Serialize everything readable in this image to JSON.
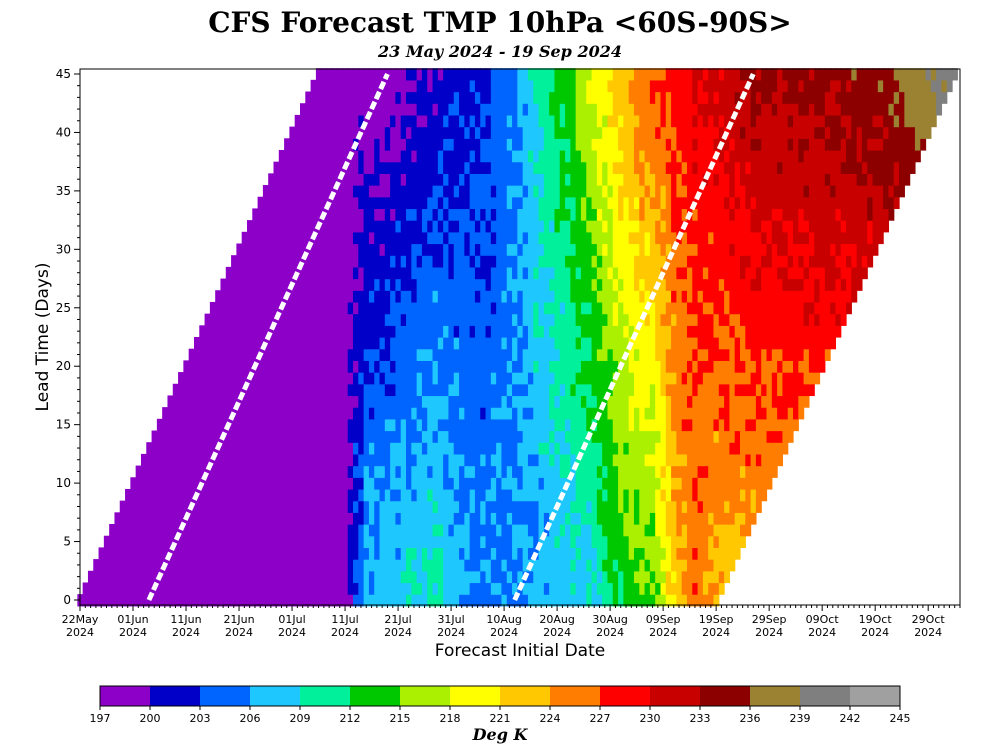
{
  "chart_data": {
    "type": "heatmap",
    "title": "CFS Forecast TMP 10hPa <60S-90S>",
    "subtitle": "23 May 2024 - 19 Sep 2024",
    "xlabel": "Forecast Initial Date",
    "ylabel": "Lead Time (Days)",
    "colorbar_label": "Deg K",
    "x_range": [
      "2024-05-22",
      "2024-11-04"
    ],
    "y_range": [
      0,
      45
    ],
    "x_ticks": [
      {
        "date": "2024-05-22",
        "line1": "22May",
        "line2": "2024"
      },
      {
        "date": "2024-06-01",
        "line1": "01Jun",
        "line2": "2024"
      },
      {
        "date": "2024-06-11",
        "line1": "11Jun",
        "line2": "2024"
      },
      {
        "date": "2024-06-21",
        "line1": "21Jun",
        "line2": "2024"
      },
      {
        "date": "2024-07-01",
        "line1": "01Jul",
        "line2": "2024"
      },
      {
        "date": "2024-07-11",
        "line1": "11Jul",
        "line2": "2024"
      },
      {
        "date": "2024-07-21",
        "line1": "21Jul",
        "line2": "2024"
      },
      {
        "date": "2024-07-31",
        "line1": "31Jul",
        "line2": "2024"
      },
      {
        "date": "2024-08-10",
        "line1": "10Aug",
        "line2": "2024"
      },
      {
        "date": "2024-08-20",
        "line1": "20Aug",
        "line2": "2024"
      },
      {
        "date": "2024-08-30",
        "line1": "30Aug",
        "line2": "2024"
      },
      {
        "date": "2024-09-09",
        "line1": "09Sep",
        "line2": "2024"
      },
      {
        "date": "2024-09-19",
        "line1": "19Sep",
        "line2": "2024"
      },
      {
        "date": "2024-09-29",
        "line1": "29Sep",
        "line2": "2024"
      },
      {
        "date": "2024-10-09",
        "line1": "09Oct",
        "line2": "2024"
      },
      {
        "date": "2024-10-19",
        "line1": "19Oct",
        "line2": "2024"
      },
      {
        "date": "2024-10-29",
        "line1": "29Oct",
        "line2": "2024"
      }
    ],
    "y_ticks": [
      0,
      5,
      10,
      15,
      20,
      25,
      30,
      35,
      40,
      45
    ],
    "levels": [
      197,
      200,
      203,
      206,
      209,
      212,
      215,
      218,
      221,
      224,
      227,
      230,
      233,
      236,
      239,
      242,
      245
    ],
    "colors": [
      "#8c00c8",
      "#0000c8",
      "#0064ff",
      "#1ec8ff",
      "#00f09b",
      "#00c800",
      "#aaf000",
      "#ffff00",
      "#ffc800",
      "#ff7d00",
      "#ff0000",
      "#c80000",
      "#8c0000",
      "#9b8232",
      "#7f7f7f",
      "#a0a0a0"
    ],
    "isotherm_line_dates": [
      {
        "init": "2024-06-04",
        "valid_at_lead": 0
      },
      {
        "init": "2024-08-12",
        "valid_at_lead": 0
      }
    ],
    "series": [
      {
        "lead_days": 0,
        "profile": [
          {
            "date": "2024-05-22",
            "value": 198
          },
          {
            "date": "2024-07-11",
            "value": 198
          },
          {
            "date": "2024-07-12",
            "value": 201
          },
          {
            "date": "2024-07-15",
            "value": 207
          },
          {
            "date": "2024-07-28",
            "value": 210
          },
          {
            "date": "2024-08-05",
            "value": 205
          },
          {
            "date": "2024-08-26",
            "value": 208
          },
          {
            "date": "2024-09-01",
            "value": 213
          },
          {
            "date": "2024-09-07",
            "value": 214
          },
          {
            "date": "2024-09-11",
            "value": 222
          },
          {
            "date": "2024-09-15",
            "value": 226
          },
          {
            "date": "2024-09-19",
            "value": 223
          }
        ]
      },
      {
        "lead_days": 45,
        "profile": [
          {
            "date": "2024-05-22",
            "value": 198
          },
          {
            "date": "2024-07-18",
            "value": 198
          },
          {
            "date": "2024-08-10",
            "value": 204
          },
          {
            "date": "2024-08-22",
            "value": 214
          },
          {
            "date": "2024-09-05",
            "value": 226
          },
          {
            "date": "2024-09-25",
            "value": 233
          },
          {
            "date": "2024-10-20",
            "value": 235
          },
          {
            "date": "2024-10-27",
            "value": 238
          },
          {
            "date": "2024-11-03",
            "value": 241
          }
        ]
      }
    ]
  }
}
